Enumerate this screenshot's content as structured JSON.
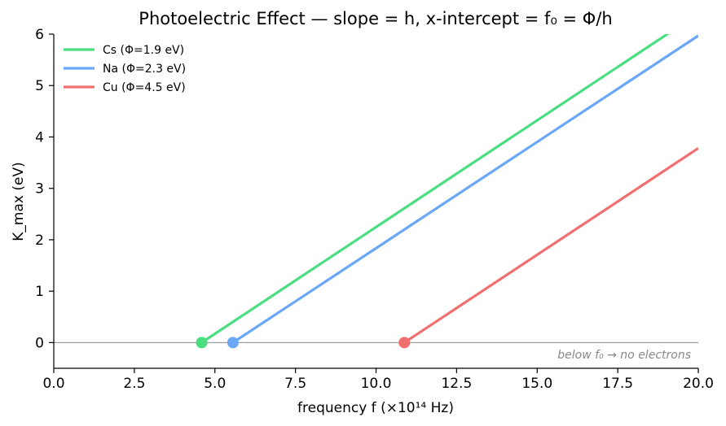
{
  "chart_data": {
    "type": "line",
    "title": "Photoelectric Effect — slope = h, x-intercept = f₀ = Φ/h",
    "xlabel": "frequency  f  (×10¹⁴ Hz)",
    "ylabel": "K_max  (eV)",
    "xlim": [
      0,
      20
    ],
    "ylim": [
      -0.5,
      6
    ],
    "x_ticks": [
      "0.0",
      "2.5",
      "5.0",
      "7.5",
      "10.0",
      "12.5",
      "15.0",
      "17.5",
      "20.0"
    ],
    "x_tick_values": [
      0,
      2.5,
      5,
      7.5,
      10,
      12.5,
      15,
      17.5,
      20
    ],
    "y_ticks": [
      "0",
      "1",
      "2",
      "3",
      "4",
      "5",
      "6"
    ],
    "y_tick_values": [
      0,
      1,
      2,
      3,
      4,
      5,
      6
    ],
    "grid": false,
    "legend_position": "top-left",
    "baseline_y": 0,
    "annotation": "below f₀ → no electrons",
    "series": [
      {
        "name": "Cs (Φ=1.9 eV)",
        "color": "#4ade80",
        "threshold_x": 4.59,
        "end_x": 20,
        "end_y": 6.4
      },
      {
        "name": "Na (Φ=2.3 eV)",
        "color": "#6aa8f7",
        "threshold_x": 5.56,
        "end_x": 20,
        "end_y": 5.97
      },
      {
        "name": "Cu (Φ=4.5 eV)",
        "color": "#f07070",
        "threshold_x": 10.88,
        "end_x": 20,
        "end_y": 3.78
      }
    ]
  }
}
